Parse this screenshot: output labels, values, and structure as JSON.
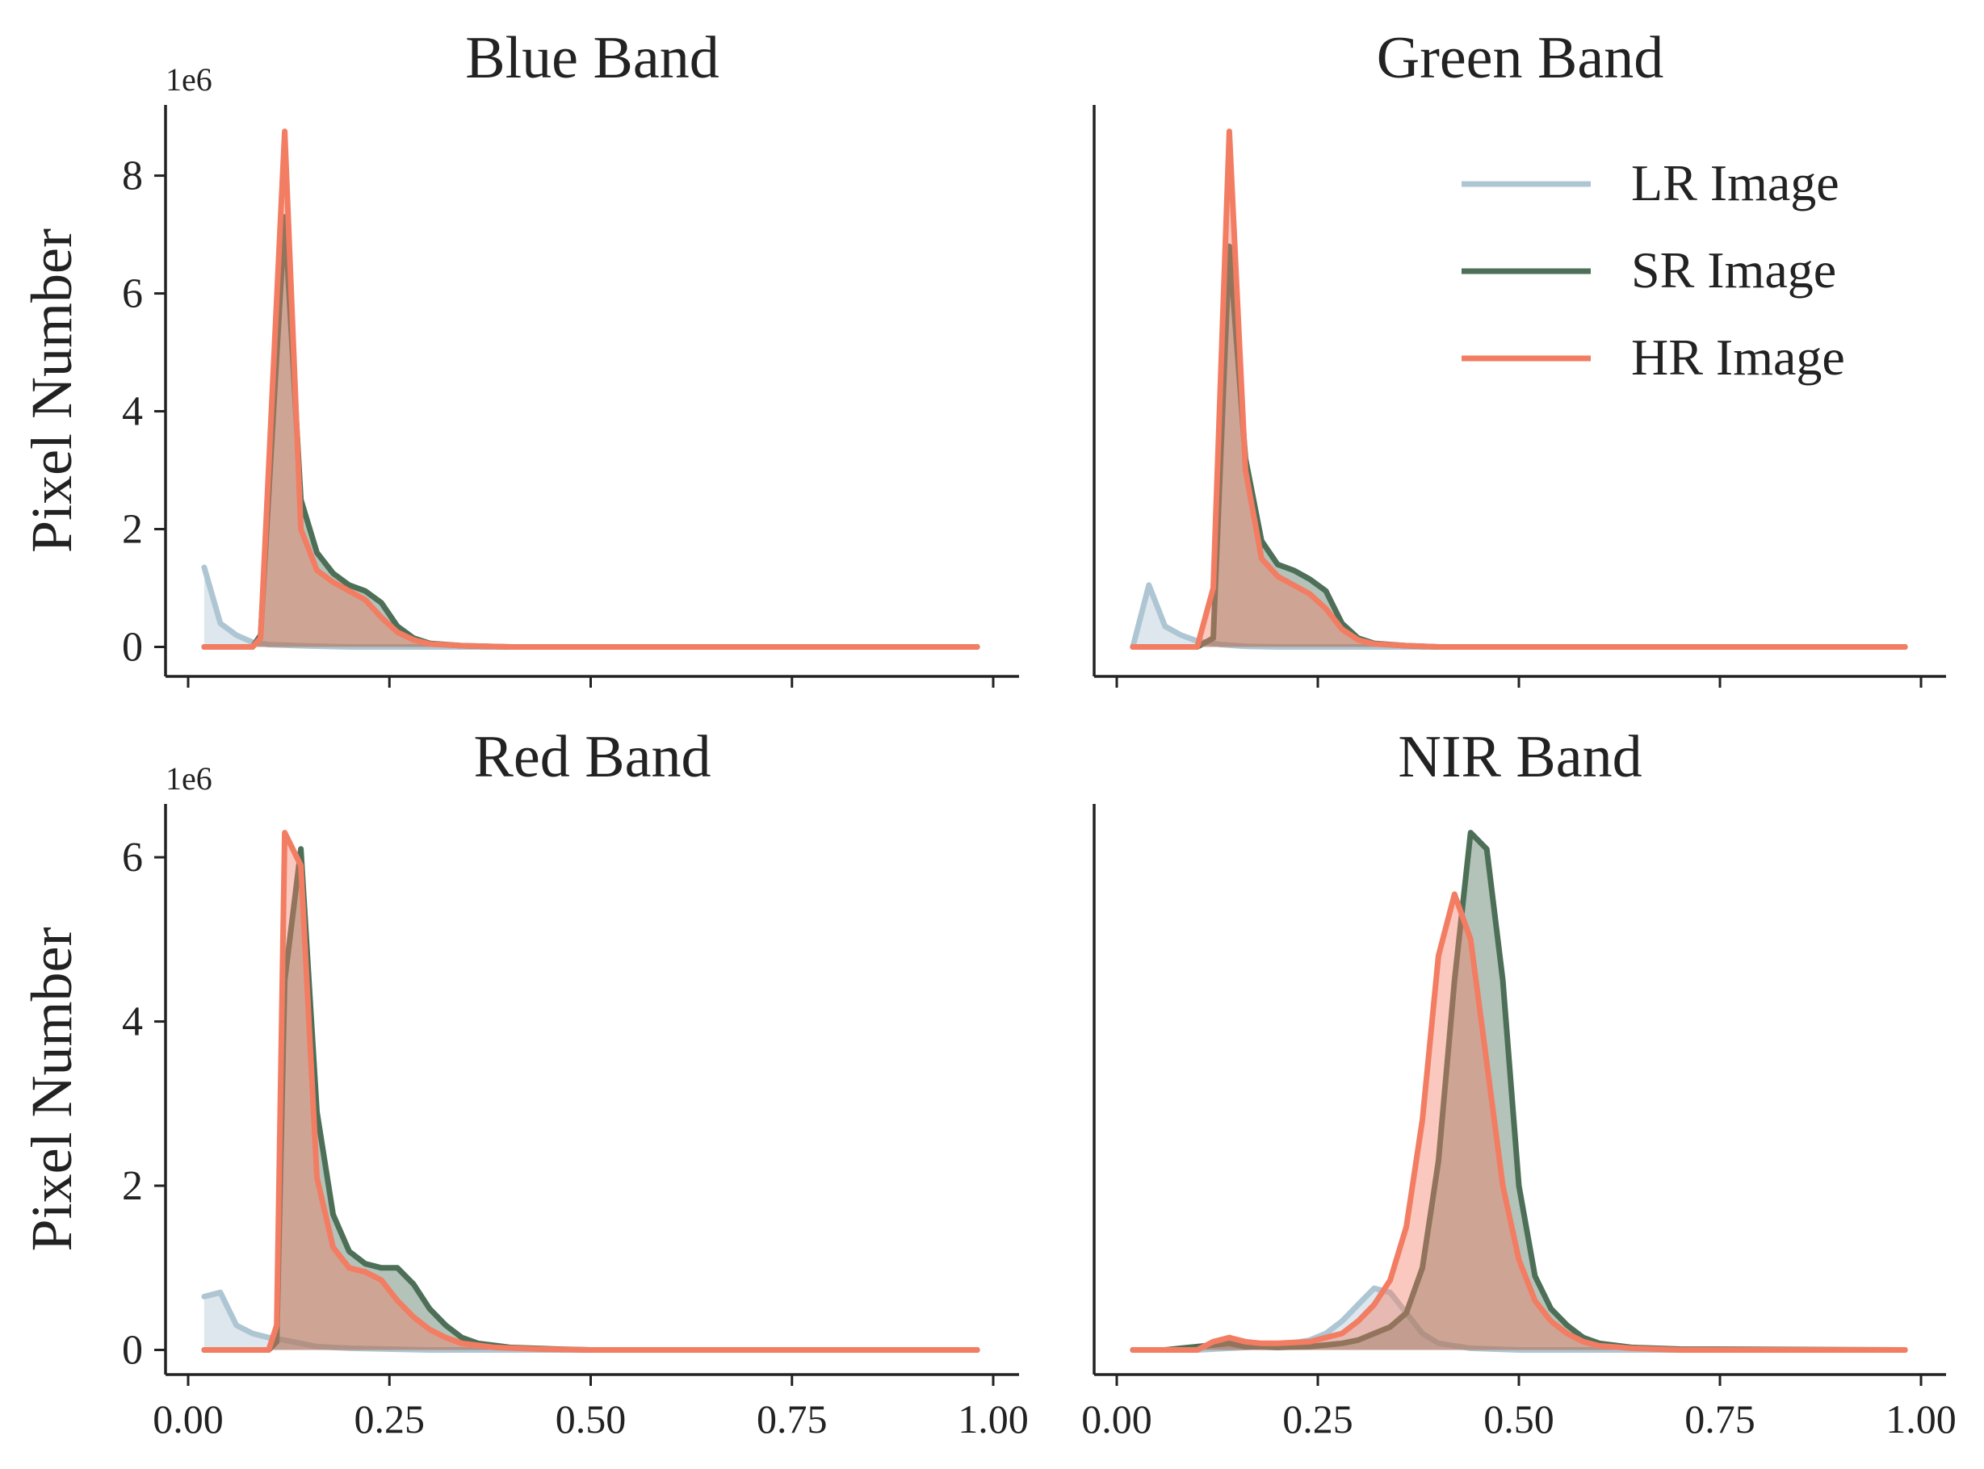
{
  "figure": {
    "ylabel": "Pixel Number",
    "legend": {
      "placement": "top-right",
      "panel": 1,
      "items": [
        {
          "label": "LR Image",
          "color": "#aec6d3"
        },
        {
          "label": "SR Image",
          "color": "#4d6f57"
        },
        {
          "label": "HR Image",
          "color": "#f27d63"
        }
      ]
    }
  },
  "chart_data": [
    {
      "type": "area",
      "title": "Blue Band",
      "offset_label": "1e6",
      "xlabel": "",
      "ylabel": "Pixel Number",
      "xlim": [
        0,
        1
      ],
      "ylim": [
        -0.5,
        9.2
      ],
      "xticks": [
        "0.00",
        "0.25",
        "0.50",
        "0.75",
        "1.00"
      ],
      "yticks": [
        "0",
        "2",
        "4",
        "6",
        "8"
      ],
      "series": [
        {
          "name": "LR Image",
          "points": [
            [
              0.02,
              1.35
            ],
            [
              0.04,
              0.4
            ],
            [
              0.06,
              0.2
            ],
            [
              0.08,
              0.08
            ],
            [
              0.1,
              0.04
            ],
            [
              0.14,
              0.02
            ],
            [
              0.2,
              0.0
            ],
            [
              0.98,
              0.0
            ]
          ]
        },
        {
          "name": "SR Image",
          "points": [
            [
              0.02,
              0.0
            ],
            [
              0.08,
              0.0
            ],
            [
              0.09,
              0.2
            ],
            [
              0.12,
              7.3
            ],
            [
              0.14,
              2.5
            ],
            [
              0.16,
              1.6
            ],
            [
              0.18,
              1.25
            ],
            [
              0.2,
              1.05
            ],
            [
              0.22,
              0.95
            ],
            [
              0.24,
              0.75
            ],
            [
              0.26,
              0.35
            ],
            [
              0.28,
              0.15
            ],
            [
              0.3,
              0.06
            ],
            [
              0.34,
              0.02
            ],
            [
              0.4,
              0.0
            ],
            [
              0.98,
              0.0
            ]
          ]
        },
        {
          "name": "HR Image",
          "points": [
            [
              0.02,
              0.0
            ],
            [
              0.08,
              0.0
            ],
            [
              0.09,
              0.15
            ],
            [
              0.12,
              8.75
            ],
            [
              0.14,
              2.0
            ],
            [
              0.16,
              1.3
            ],
            [
              0.18,
              1.1
            ],
            [
              0.2,
              0.95
            ],
            [
              0.22,
              0.8
            ],
            [
              0.24,
              0.5
            ],
            [
              0.26,
              0.25
            ],
            [
              0.28,
              0.12
            ],
            [
              0.3,
              0.05
            ],
            [
              0.34,
              0.02
            ],
            [
              0.4,
              0.0
            ],
            [
              0.98,
              0.0
            ]
          ]
        }
      ]
    },
    {
      "type": "area",
      "title": "Green Band",
      "offset_label": "",
      "xlabel": "",
      "ylabel": "",
      "xlim": [
        0,
        1
      ],
      "ylim": [
        -0.5,
        9.2
      ],
      "xticks": [
        "0.00",
        "0.25",
        "0.50",
        "0.75",
        "1.00"
      ],
      "yticks": [],
      "series": [
        {
          "name": "LR Image",
          "points": [
            [
              0.02,
              0.0
            ],
            [
              0.04,
              1.05
            ],
            [
              0.06,
              0.35
            ],
            [
              0.08,
              0.2
            ],
            [
              0.1,
              0.1
            ],
            [
              0.13,
              0.04
            ],
            [
              0.16,
              0.01
            ],
            [
              0.2,
              0.0
            ],
            [
              0.98,
              0.0
            ]
          ]
        },
        {
          "name": "SR Image",
          "points": [
            [
              0.02,
              0.0
            ],
            [
              0.1,
              0.0
            ],
            [
              0.12,
              0.15
            ],
            [
              0.14,
              6.8
            ],
            [
              0.16,
              3.2
            ],
            [
              0.18,
              1.8
            ],
            [
              0.2,
              1.4
            ],
            [
              0.22,
              1.3
            ],
            [
              0.24,
              1.15
            ],
            [
              0.26,
              0.95
            ],
            [
              0.28,
              0.4
            ],
            [
              0.3,
              0.15
            ],
            [
              0.32,
              0.06
            ],
            [
              0.36,
              0.02
            ],
            [
              0.4,
              0.0
            ],
            [
              0.98,
              0.0
            ]
          ]
        },
        {
          "name": "HR Image",
          "points": [
            [
              0.02,
              0.0
            ],
            [
              0.1,
              0.0
            ],
            [
              0.12,
              1.0
            ],
            [
              0.14,
              8.75
            ],
            [
              0.16,
              3.0
            ],
            [
              0.18,
              1.5
            ],
            [
              0.2,
              1.2
            ],
            [
              0.22,
              1.05
            ],
            [
              0.24,
              0.9
            ],
            [
              0.26,
              0.65
            ],
            [
              0.28,
              0.3
            ],
            [
              0.3,
              0.12
            ],
            [
              0.32,
              0.05
            ],
            [
              0.36,
              0.02
            ],
            [
              0.4,
              0.0
            ],
            [
              0.98,
              0.0
            ]
          ]
        }
      ]
    },
    {
      "type": "area",
      "title": "Red Band",
      "offset_label": "1e6",
      "xlabel": "",
      "ylabel": "Pixel Number",
      "xlim": [
        0,
        1
      ],
      "ylim": [
        -0.3,
        6.65
      ],
      "xticks": [
        "0.00",
        "0.25",
        "0.50",
        "0.75",
        "1.00"
      ],
      "yticks": [
        "0",
        "2",
        "4",
        "6"
      ],
      "series": [
        {
          "name": "LR Image",
          "points": [
            [
              0.02,
              0.65
            ],
            [
              0.04,
              0.7
            ],
            [
              0.06,
              0.3
            ],
            [
              0.08,
              0.2
            ],
            [
              0.1,
              0.15
            ],
            [
              0.12,
              0.12
            ],
            [
              0.14,
              0.08
            ],
            [
              0.16,
              0.04
            ],
            [
              0.2,
              0.02
            ],
            [
              0.3,
              0.0
            ],
            [
              0.98,
              0.0
            ]
          ]
        },
        {
          "name": "SR Image",
          "points": [
            [
              0.02,
              0.0
            ],
            [
              0.1,
              0.0
            ],
            [
              0.11,
              0.1
            ],
            [
              0.12,
              4.5
            ],
            [
              0.14,
              6.1
            ],
            [
              0.16,
              2.9
            ],
            [
              0.18,
              1.65
            ],
            [
              0.2,
              1.2
            ],
            [
              0.22,
              1.05
            ],
            [
              0.24,
              1.0
            ],
            [
              0.26,
              1.0
            ],
            [
              0.28,
              0.8
            ],
            [
              0.3,
              0.5
            ],
            [
              0.32,
              0.3
            ],
            [
              0.34,
              0.15
            ],
            [
              0.36,
              0.08
            ],
            [
              0.4,
              0.03
            ],
            [
              0.46,
              0.01
            ],
            [
              0.5,
              0.0
            ],
            [
              0.98,
              0.0
            ]
          ]
        },
        {
          "name": "HR Image",
          "points": [
            [
              0.02,
              0.0
            ],
            [
              0.1,
              0.0
            ],
            [
              0.11,
              0.3
            ],
            [
              0.12,
              6.3
            ],
            [
              0.14,
              5.9
            ],
            [
              0.16,
              2.1
            ],
            [
              0.18,
              1.25
            ],
            [
              0.2,
              1.0
            ],
            [
              0.22,
              0.95
            ],
            [
              0.24,
              0.85
            ],
            [
              0.26,
              0.6
            ],
            [
              0.28,
              0.4
            ],
            [
              0.3,
              0.25
            ],
            [
              0.32,
              0.15
            ],
            [
              0.34,
              0.08
            ],
            [
              0.38,
              0.03
            ],
            [
              0.44,
              0.01
            ],
            [
              0.5,
              0.0
            ],
            [
              0.98,
              0.0
            ]
          ]
        }
      ]
    },
    {
      "type": "area",
      "title": "NIR Band",
      "offset_label": "",
      "xlabel": "",
      "ylabel": "",
      "xlim": [
        0,
        1
      ],
      "ylim": [
        -0.3,
        6.65
      ],
      "xticks": [
        "0.00",
        "0.25",
        "0.50",
        "0.75",
        "1.00"
      ],
      "yticks": [],
      "series": [
        {
          "name": "LR Image",
          "points": [
            [
              0.02,
              0.0
            ],
            [
              0.1,
              0.0
            ],
            [
              0.14,
              0.02
            ],
            [
              0.2,
              0.05
            ],
            [
              0.24,
              0.12
            ],
            [
              0.26,
              0.2
            ],
            [
              0.28,
              0.35
            ],
            [
              0.3,
              0.55
            ],
            [
              0.32,
              0.75
            ],
            [
              0.34,
              0.7
            ],
            [
              0.36,
              0.45
            ],
            [
              0.38,
              0.2
            ],
            [
              0.4,
              0.08
            ],
            [
              0.44,
              0.02
            ],
            [
              0.5,
              0.0
            ],
            [
              0.98,
              0.0
            ]
          ]
        },
        {
          "name": "SR Image",
          "points": [
            [
              0.02,
              0.0
            ],
            [
              0.06,
              0.0
            ],
            [
              0.08,
              0.02
            ],
            [
              0.1,
              0.04
            ],
            [
              0.12,
              0.06
            ],
            [
              0.14,
              0.08
            ],
            [
              0.16,
              0.04
            ],
            [
              0.2,
              0.03
            ],
            [
              0.24,
              0.04
            ],
            [
              0.28,
              0.08
            ],
            [
              0.3,
              0.12
            ],
            [
              0.32,
              0.2
            ],
            [
              0.34,
              0.28
            ],
            [
              0.36,
              0.45
            ],
            [
              0.38,
              1.0
            ],
            [
              0.4,
              2.3
            ],
            [
              0.42,
              4.5
            ],
            [
              0.44,
              6.3
            ],
            [
              0.46,
              6.1
            ],
            [
              0.48,
              4.5
            ],
            [
              0.5,
              2.0
            ],
            [
              0.52,
              0.9
            ],
            [
              0.54,
              0.5
            ],
            [
              0.56,
              0.3
            ],
            [
              0.58,
              0.15
            ],
            [
              0.6,
              0.08
            ],
            [
              0.64,
              0.03
            ],
            [
              0.7,
              0.01
            ],
            [
              0.98,
              0.0
            ]
          ]
        },
        {
          "name": "HR Image",
          "points": [
            [
              0.02,
              0.0
            ],
            [
              0.1,
              0.0
            ],
            [
              0.12,
              0.1
            ],
            [
              0.14,
              0.15
            ],
            [
              0.16,
              0.1
            ],
            [
              0.18,
              0.08
            ],
            [
              0.2,
              0.08
            ],
            [
              0.24,
              0.1
            ],
            [
              0.28,
              0.2
            ],
            [
              0.3,
              0.35
            ],
            [
              0.32,
              0.55
            ],
            [
              0.34,
              0.85
            ],
            [
              0.36,
              1.5
            ],
            [
              0.38,
              2.8
            ],
            [
              0.4,
              4.8
            ],
            [
              0.42,
              5.55
            ],
            [
              0.44,
              5.0
            ],
            [
              0.46,
              3.5
            ],
            [
              0.48,
              2.0
            ],
            [
              0.5,
              1.1
            ],
            [
              0.52,
              0.6
            ],
            [
              0.54,
              0.35
            ],
            [
              0.56,
              0.2
            ],
            [
              0.58,
              0.1
            ],
            [
              0.6,
              0.05
            ],
            [
              0.64,
              0.02
            ],
            [
              0.7,
              0.0
            ],
            [
              0.98,
              0.0
            ]
          ]
        }
      ]
    }
  ]
}
